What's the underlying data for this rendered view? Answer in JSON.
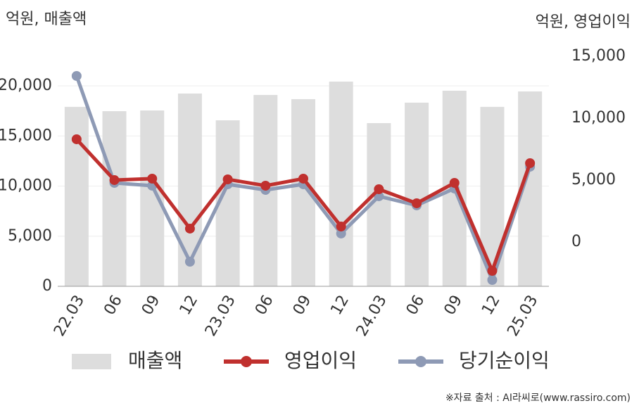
{
  "chart_data": {
    "type": "bar_line",
    "y_label": "억원, 매출액",
    "y2_label": "억원, 영업이익",
    "source": "※자료 출처 : AI라씨로(www.rassiro.com)",
    "categories": [
      "22.03",
      "06",
      "09",
      "12",
      "23.03",
      "06",
      "09",
      "12",
      "24.03",
      "06",
      "09",
      "12",
      "25.03"
    ],
    "series": [
      {
        "name": "매출액",
        "type": "bar",
        "color": "#dddddd",
        "values": [
          17900,
          17470,
          17540,
          19230,
          16560,
          19090,
          18670,
          20420,
          16280,
          18320,
          19510,
          17900,
          19440
        ]
      },
      {
        "name": "영업이익",
        "type": "line",
        "axis": "y2",
        "color": "#c0302e",
        "values": [
          8295,
          5000,
          5114,
          1080,
          5057,
          4545,
          5114,
          1250,
          4261,
          3125,
          4773,
          -2330,
          6364
        ]
      },
      {
        "name": "당기순이익",
        "type": "line",
        "axis": "y2",
        "color": "#8e9ab5",
        "values": [
          13409,
          4773,
          4545,
          -1591,
          4659,
          4205,
          4659,
          682,
          3693,
          2955,
          4318,
          -3068,
          6080
        ]
      }
    ],
    "ylim": [
      0,
      23000
    ],
    "yticks": [
      0,
      {
        "value": 5000,
        "label": "5,000"
      },
      {
        "value": 10000,
        "label": "10,000"
      },
      {
        "value": 15000,
        "label": "15,000"
      },
      {
        "value": 20000,
        "label": "20,000"
      }
    ],
    "y2lim": [
      -3580,
      15040
    ],
    "y2ticks": [
      0,
      {
        "value": 5000,
        "label": "5,000"
      },
      {
        "value": 10000,
        "label": "10,000"
      },
      {
        "value": 15000,
        "label": "15,000"
      }
    ],
    "grid": true
  }
}
